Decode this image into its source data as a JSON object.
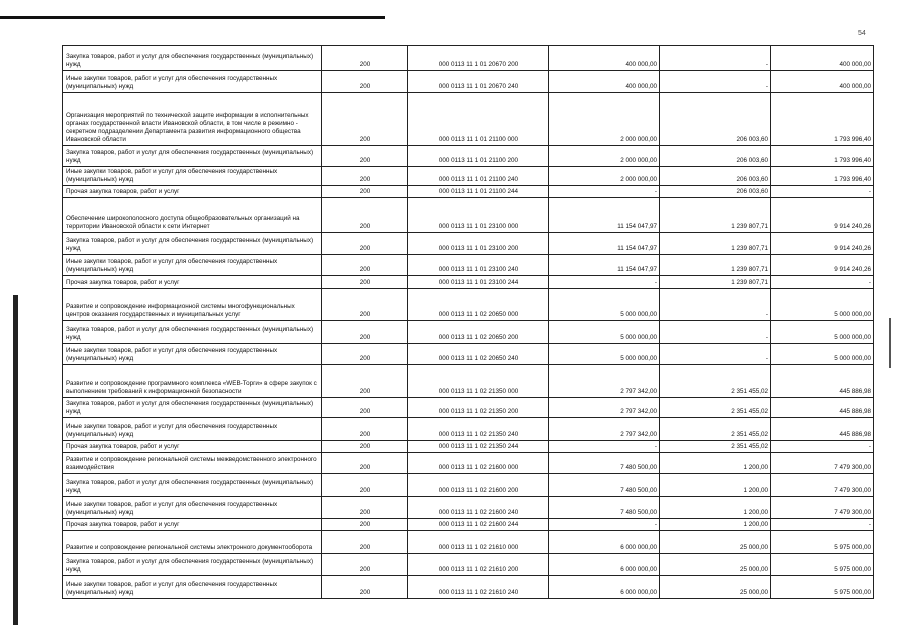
{
  "page_mark": "54",
  "rows": [
    {
      "desc": "Закупка товаров, работ и услуг для обеспечения государственных (муниципальных) нужд",
      "code": "200",
      "kbk": "000 0113 11 1 01 20670 200",
      "approved": "400 000,00",
      "executed": "-",
      "remaining": "400 000,00"
    },
    {
      "desc": "Иные закупки товаров, работ и услуг для обеспечения государственных (муниципальных) нужд",
      "code": "200",
      "kbk": "000 0113 11 1 01 20670 240",
      "approved": "400 000,00",
      "executed": "-",
      "remaining": "400 000,00"
    },
    {
      "desc": "Организация мероприятий по технической защите информации в исполнительных органах государственной власти Ивановской области, в том числе в режимно - секретном подразделении Департамента развития информационного общества Ивановской области",
      "code": "200",
      "kbk": "000 0113 11 1 01 21100 000",
      "approved": "2 000 000,00",
      "executed": "206 003,60",
      "remaining": "1 793 996,40"
    },
    {
      "desc": "Закупка товаров, работ и услуг для обеспечения государственных (муниципальных) нужд",
      "code": "200",
      "kbk": "000 0113 11 1 01 21100 200",
      "approved": "2 000 000,00",
      "executed": "206 003,60",
      "remaining": "1 793 996,40"
    },
    {
      "desc": "Иные закупки товаров, работ и услуг для обеспечения государственных (муниципальных) нужд",
      "code": "200",
      "kbk": "000 0113 11 1 01 21100 240",
      "approved": "2 000 000,00",
      "executed": "206 003,60",
      "remaining": "1 793 996,40"
    },
    {
      "desc": "Прочая закупка товаров, работ и услуг",
      "code": "200",
      "kbk": "000 0113 11 1 01 21100 244",
      "approved": "-",
      "executed": "206 003,60",
      "remaining": "-"
    },
    {
      "desc": "Обеспечение широкополосного доступа общеобразовательных организаций на территории Ивановской области к сети Интернет",
      "code": "200",
      "kbk": "000 0113 11 1 01 23100 000",
      "approved": "11 154 047,97",
      "executed": "1 239 807,71",
      "remaining": "9 914 240,26"
    },
    {
      "desc": "Закупка товаров, работ и услуг для обеспечения государственных (муниципальных) нужд",
      "code": "200",
      "kbk": "000 0113 11 1 01 23100 200",
      "approved": "11 154 047,97",
      "executed": "1 239 807,71",
      "remaining": "9 914 240,26"
    },
    {
      "desc": "Иные закупки товаров, работ и услуг для обеспечения государственных (муниципальных) нужд",
      "code": "200",
      "kbk": "000 0113 11 1 01 23100 240",
      "approved": "11 154 047,97",
      "executed": "1 239 807,71",
      "remaining": "9 914 240,26"
    },
    {
      "desc": "Прочая закупка товаров, работ и услуг",
      "code": "200",
      "kbk": "000 0113 11 1 01 23100 244",
      "approved": "-",
      "executed": "1 239 807,71",
      "remaining": "-"
    },
    {
      "desc": "Развитие и сопровождение информационной системы многофункциональных центров оказания государственных и муниципальных услуг",
      "code": "200",
      "kbk": "000 0113 11 1 02 20650 000",
      "approved": "5 000 000,00",
      "executed": "-",
      "remaining": "5 000 000,00"
    },
    {
      "desc": "Закупка товаров, работ и услуг для обеспечения государственных (муниципальных) нужд",
      "code": "200",
      "kbk": "000 0113 11 1 02 20650 200",
      "approved": "5 000 000,00",
      "executed": "-",
      "remaining": "5 000 000,00"
    },
    {
      "desc": "Иные закупки товаров, работ и услуг для обеспечения государственных (муниципальных) нужд",
      "code": "200",
      "kbk": "000 0113 11 1 02 20650 240",
      "approved": "5 000 000,00",
      "executed": "-",
      "remaining": "5 000 000,00"
    },
    {
      "desc": "Развитие и сопровождение программного комплекса «WEB-Торги» в сфере закупок с выполнением требований к информационной безопасности",
      "code": "200",
      "kbk": "000 0113 11 1 02 21350 000",
      "approved": "2 797 342,00",
      "executed": "2 351 455,02",
      "remaining": "445 886,98"
    },
    {
      "desc": "Закупка товаров, работ и услуг для обеспечения государственных (муниципальных) нужд",
      "code": "200",
      "kbk": "000 0113 11 1 02 21350 200",
      "approved": "2 797 342,00",
      "executed": "2 351 455,02",
      "remaining": "445 886,98"
    },
    {
      "desc": "Иные закупки товаров, работ и услуг для обеспечения государственных (муниципальных) нужд",
      "code": "200",
      "kbk": "000 0113 11 1 02 21350 240",
      "approved": "2 797 342,00",
      "executed": "2 351 455,02",
      "remaining": "445 886,98"
    },
    {
      "desc": "Прочая закупка товаров, работ и услуг",
      "code": "200",
      "kbk": "000 0113 11 1 02 21350 244",
      "approved": "-",
      "executed": "2 351 455,02",
      "remaining": "-"
    },
    {
      "desc": "Развитие и сопровождение региональной системы межведомственного электронного взаимодействия",
      "code": "200",
      "kbk": "000 0113 11 1 02 21600 000",
      "approved": "7 480 500,00",
      "executed": "1 200,00",
      "remaining": "7 479 300,00"
    },
    {
      "desc": "Закупка товаров, работ и услуг для обеспечения государственных (муниципальных) нужд",
      "code": "200",
      "kbk": "000 0113 11 1 02 21600 200",
      "approved": "7 480 500,00",
      "executed": "1 200,00",
      "remaining": "7 479 300,00"
    },
    {
      "desc": "Иные закупки товаров, работ и услуг для обеспечения государственных (муниципальных) нужд",
      "code": "200",
      "kbk": "000 0113 11 1 02 21600 240",
      "approved": "7 480 500,00",
      "executed": "1 200,00",
      "remaining": "7 479 300,00"
    },
    {
      "desc": "Прочая закупка товаров, работ и услуг",
      "code": "200",
      "kbk": "000 0113 11 1 02 21600 244",
      "approved": "-",
      "executed": "1 200,00",
      "remaining": "-"
    },
    {
      "desc": "Развитие и сопровождение региональной системы электронного документооборота",
      "code": "200",
      "kbk": "000 0113 11 1 02 21610 000",
      "approved": "6 000 000,00",
      "executed": "25 000,00",
      "remaining": "5 975 000,00"
    },
    {
      "desc": "Закупка товаров, работ и услуг для обеспечения государственных (муниципальных) нужд",
      "code": "200",
      "kbk": "000 0113 11 1 02 21610 200",
      "approved": "6 000 000,00",
      "executed": "25 000,00",
      "remaining": "5 975 000,00"
    },
    {
      "desc": "Иные закупки товаров, работ и услуг для обеспечения государственных (муниципальных) нужд",
      "code": "200",
      "kbk": "000 0113 11 1 02 21610 240",
      "approved": "6 000 000,00",
      "executed": "25 000,00",
      "remaining": "5 975 000,00"
    }
  ]
}
